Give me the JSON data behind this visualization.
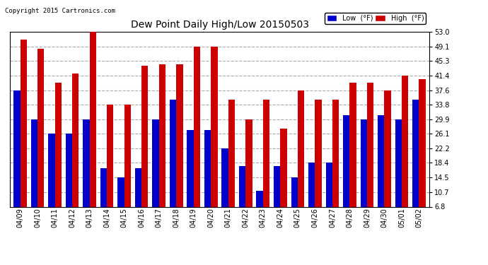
{
  "title": "Dew Point Daily High/Low 20150503",
  "copyright": "Copyright 2015 Cartronics.com",
  "legend_low": "Low  (°F)",
  "legend_high": "High  (°F)",
  "dates": [
    "04/09",
    "04/10",
    "04/11",
    "04/12",
    "04/13",
    "04/14",
    "04/15",
    "04/16",
    "04/17",
    "04/18",
    "04/19",
    "04/20",
    "04/21",
    "04/22",
    "04/23",
    "04/24",
    "04/25",
    "04/26",
    "04/27",
    "04/28",
    "04/29",
    "04/30",
    "05/01",
    "05/02"
  ],
  "low_values": [
    37.6,
    29.9,
    26.1,
    26.1,
    29.9,
    17.0,
    14.5,
    17.0,
    29.9,
    35.0,
    27.0,
    27.0,
    22.2,
    17.5,
    11.0,
    17.5,
    14.5,
    18.4,
    18.4,
    31.0,
    29.9,
    31.0,
    29.9,
    35.0
  ],
  "high_values": [
    51.0,
    48.5,
    39.5,
    42.0,
    53.0,
    33.8,
    33.8,
    44.0,
    44.5,
    44.5,
    49.1,
    49.1,
    35.0,
    29.9,
    35.0,
    27.5,
    37.6,
    35.0,
    35.0,
    39.5,
    39.5,
    37.6,
    41.4,
    40.5
  ],
  "low_color": "#0000cc",
  "high_color": "#cc0000",
  "bg_color": "#ffffff",
  "grid_color": "#aaaaaa",
  "yticks": [
    6.8,
    10.7,
    14.5,
    18.4,
    22.2,
    26.1,
    29.9,
    33.8,
    37.6,
    41.4,
    45.3,
    49.1,
    53.0
  ],
  "ymin": 6.8,
  "ymax": 53.0,
  "bar_width": 0.38,
  "figwidth": 6.9,
  "figheight": 3.75,
  "dpi": 100
}
